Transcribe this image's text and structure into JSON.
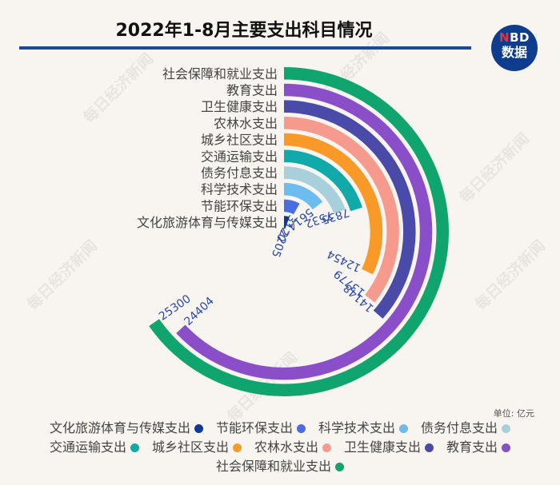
{
  "header": {
    "title": "2022年1-8月主要支出科目情况",
    "logo_top_n": "N",
    "logo_top_rest": "BD",
    "logo_bottom": "数据"
  },
  "watermark": "每日经济新闻",
  "unit_label": "单位: 亿元",
  "chart_data": {
    "type": "bar",
    "subtype": "radial-bar",
    "title": "2022年1-8月主要支出科目情况",
    "unit": "亿元",
    "categories": [
      "社会保障和就业支出",
      "教育支出",
      "卫生健康支出",
      "农林水支出",
      "城乡社区支出",
      "交通运输支出",
      "债务付息支出",
      "科学技术支出",
      "节能环保支出",
      "文化旅游体育与传媒支出"
    ],
    "values": [
      25300,
      24404,
      14148,
      13779,
      12454,
      7835,
      7532,
      5614,
      3120,
      2205
    ],
    "colors": [
      "#10a56e",
      "#8a4fc8",
      "#4a4aa8",
      "#f79a8e",
      "#f99a28",
      "#10aaaa",
      "#a8d0dc",
      "#6cbcf0",
      "#4a6ee0",
      "#0d3a9a"
    ],
    "legend_position": "bottom",
    "grid": false
  },
  "legend": {
    "rows": [
      [
        {
          "label": "文化旅游体育与传媒支出",
          "color": "#0d3a9a"
        },
        {
          "label": "节能环保支出",
          "color": "#4a6ee0"
        },
        {
          "label": "科学技术支出",
          "color": "#6cbcf0"
        },
        {
          "label": "债务付息支出",
          "color": "#a8d0dc"
        }
      ],
      [
        {
          "label": "交通运输支出",
          "color": "#10aaaa"
        },
        {
          "label": "城乡社区支出",
          "color": "#f99a28"
        },
        {
          "label": "农林水支出",
          "color": "#f79a8e"
        },
        {
          "label": "卫生健康支出",
          "color": "#4a4aa8"
        },
        {
          "label": "教育支出",
          "color": "#8a4fc8"
        }
      ],
      [
        {
          "label": "社会保障和就业支出",
          "color": "#10a56e"
        }
      ]
    ]
  }
}
